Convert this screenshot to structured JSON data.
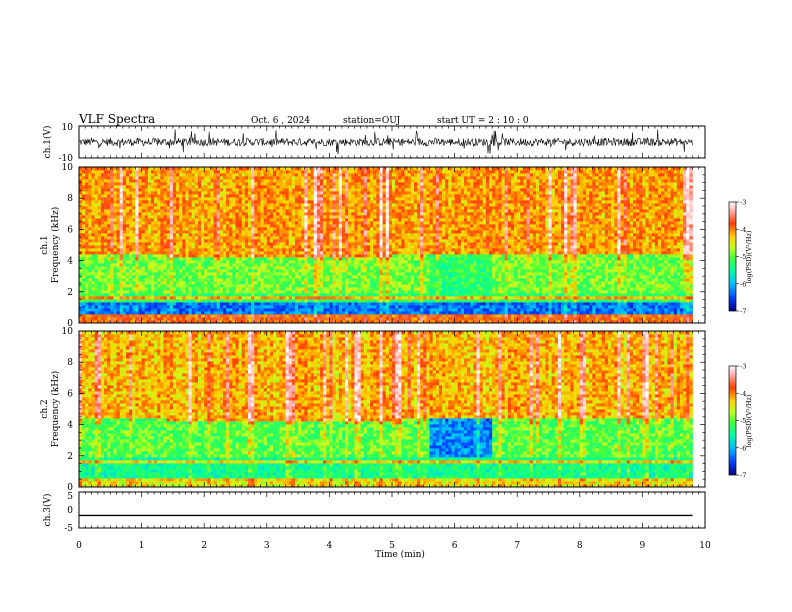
{
  "header": {
    "title": "VLF Spectra",
    "date": "Oct. 6 , 2024",
    "station": "station=OUJ",
    "start": "start  UT =  2 : 10 : 0"
  },
  "chart_data": [
    {
      "type": "line",
      "panel": "ch1-waveform",
      "ylabel": "ch.1(V)",
      "ylim": [
        -10,
        10
      ],
      "yticks": [
        "10",
        "-10"
      ],
      "description_values": {
        "baseline": 0,
        "typical_amplitude": 2.5,
        "burst_amplitude": 8
      }
    },
    {
      "type": "heatmap",
      "panel": "ch1-spectrogram",
      "ylabel": "ch.1\nFrequency  (kHz)",
      "ylim": [
        0,
        10
      ],
      "yticks": [
        "0",
        "2",
        "4",
        "6",
        "8",
        "10"
      ],
      "colorbar": {
        "label": "log(PSD)(V²/Hz)",
        "range": [
          -7,
          -3
        ],
        "ticks": [
          "-3",
          "-4",
          "-5",
          "-6",
          "-7"
        ],
        "colors": [
          "#000080",
          "#0040ff",
          "#00c0ff",
          "#00ffa0",
          "#40ff40",
          "#c0ff20",
          "#ffd000",
          "#ff4000",
          "#ffb0b0",
          "#ffffff"
        ]
      },
      "bands": [
        {
          "f": [
            0,
            0.5
          ],
          "level": -4.0
        },
        {
          "f": [
            0.5,
            1.3
          ],
          "level": -6.3
        },
        {
          "f": [
            1.3,
            2.0
          ],
          "level": -5.2
        },
        {
          "f": [
            2.0,
            4.5
          ],
          "level": -4.9
        },
        {
          "f": [
            4.5,
            10.0
          ],
          "level": -4.2
        }
      ]
    },
    {
      "type": "heatmap",
      "panel": "ch2-spectrogram",
      "ylabel": "ch.2\nFrequency  (kHz)",
      "ylim": [
        0,
        10
      ],
      "yticks": [
        "0",
        "2",
        "4",
        "6",
        "8",
        "10"
      ],
      "colorbar": {
        "label": "log(PSD)(V²/Hz)",
        "range": [
          -7,
          -3
        ],
        "ticks": [
          "-3",
          "-4",
          "-5",
          "-6",
          "-7"
        ]
      },
      "bands": [
        {
          "f": [
            0,
            0.5
          ],
          "level": -4.5
        },
        {
          "f": [
            0.5,
            2.0
          ],
          "level": -5.4
        },
        {
          "f": [
            2.0,
            4.5
          ],
          "level": -5.0
        },
        {
          "f": [
            4.5,
            10.0
          ],
          "level": -4.3
        }
      ]
    },
    {
      "type": "line",
      "panel": "ch3-waveform",
      "ylabel": "ch.3(V)",
      "ylim": [
        -5,
        5
      ],
      "yticks": [
        "5",
        "0",
        "-5"
      ],
      "x": [
        0,
        9.8
      ],
      "y": [
        -1.5,
        -1.5
      ]
    }
  ],
  "xaxis": {
    "label": "Time  (min)",
    "range": [
      0,
      10
    ],
    "ticks": [
      "0",
      "1",
      "2",
      "3",
      "4",
      "5",
      "6",
      "7",
      "8",
      "9",
      "10"
    ],
    "data_end": 9.8
  }
}
